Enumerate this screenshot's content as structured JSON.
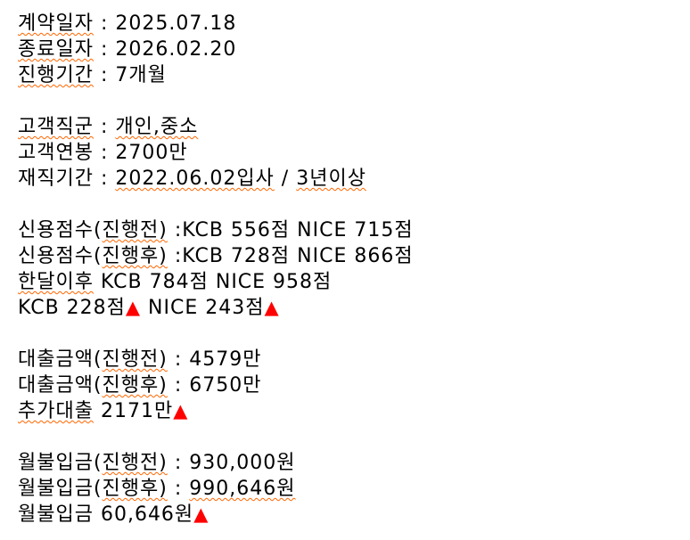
{
  "page": {
    "colors": {
      "text": "#000000",
      "spellcheck_underline": "#ff6600",
      "triangle": "#ff0000",
      "background": "#ffffff"
    },
    "triangle_glyph": "▲"
  },
  "sections": [
    {
      "name": "contract-dates",
      "lines": [
        {
          "segments": [
            {
              "text": "계약일자",
              "kind": "underline"
            },
            {
              "text": " : 2025.07.18",
              "kind": "plain"
            }
          ]
        },
        {
          "segments": [
            {
              "text": "종료일자",
              "kind": "underline"
            },
            {
              "text": " : 2026.02.20",
              "kind": "plain"
            }
          ]
        },
        {
          "segments": [
            {
              "text": "진행기간",
              "kind": "underline"
            },
            {
              "text": " : 7개월",
              "kind": "plain"
            }
          ]
        }
      ]
    },
    {
      "name": "customer-profile",
      "lines": [
        {
          "segments": [
            {
              "text": "고객직군",
              "kind": "underline"
            },
            {
              "text": " : ",
              "kind": "plain"
            },
            {
              "text": "개인,중소",
              "kind": "underline"
            }
          ]
        },
        {
          "segments": [
            {
              "text": "고객연봉 : 2700만",
              "kind": "plain"
            }
          ]
        },
        {
          "segments": [
            {
              "text": "재직기간 : ",
              "kind": "plain"
            },
            {
              "text": "2022.06.02입사",
              "kind": "underline"
            },
            {
              "text": " / ",
              "kind": "plain"
            },
            {
              "text": "3년이상",
              "kind": "underline"
            }
          ]
        }
      ]
    },
    {
      "name": "credit-scores",
      "lines": [
        {
          "segments": [
            {
              "text": "신용점수(",
              "kind": "plain"
            },
            {
              "text": "진행전)",
              "kind": "underline"
            },
            {
              "text": " :KCB 556점 NICE 715점",
              "kind": "plain"
            }
          ]
        },
        {
          "segments": [
            {
              "text": "신용점수(",
              "kind": "plain"
            },
            {
              "text": "진행후)",
              "kind": "underline"
            },
            {
              "text": " :KCB 728점 NICE 866점",
              "kind": "plain"
            }
          ]
        },
        {
          "segments": [
            {
              "text": "한달이후",
              "kind": "underline"
            },
            {
              "text": " KCB 784점 NICE 958점",
              "kind": "plain"
            }
          ]
        },
        {
          "segments": [
            {
              "text": "KCB 228점",
              "kind": "plain"
            },
            {
              "text": "▲",
              "kind": "triangle"
            },
            {
              "text": " NICE 243점",
              "kind": "plain"
            },
            {
              "text": "▲",
              "kind": "triangle"
            }
          ]
        }
      ]
    },
    {
      "name": "loan-amounts",
      "lines": [
        {
          "segments": [
            {
              "text": "대출금액(",
              "kind": "plain"
            },
            {
              "text": "진행전)",
              "kind": "underline"
            },
            {
              "text": " : 4579만",
              "kind": "plain"
            }
          ]
        },
        {
          "segments": [
            {
              "text": "대출금액(",
              "kind": "plain"
            },
            {
              "text": "진행후)",
              "kind": "underline"
            },
            {
              "text": " : 6750만",
              "kind": "plain"
            }
          ]
        },
        {
          "segments": [
            {
              "text": "추가대출",
              "kind": "underline"
            },
            {
              "text": " 2171만",
              "kind": "plain"
            },
            {
              "text": "▲",
              "kind": "triangle"
            }
          ]
        }
      ]
    },
    {
      "name": "monthly-payments",
      "lines": [
        {
          "segments": [
            {
              "text": "월불입금(",
              "kind": "plain"
            },
            {
              "text": "진행전)",
              "kind": "underline"
            },
            {
              "text": " : 930,000원",
              "kind": "plain"
            }
          ]
        },
        {
          "segments": [
            {
              "text": "월불입금(",
              "kind": "plain"
            },
            {
              "text": "진행후)",
              "kind": "underline"
            },
            {
              "text": " : ",
              "kind": "plain"
            },
            {
              "text": "990,646원",
              "kind": "underline"
            }
          ]
        },
        {
          "segments": [
            {
              "text": "월불입금 60,646원",
              "kind": "plain"
            },
            {
              "text": "▲",
              "kind": "triangle"
            }
          ]
        }
      ]
    }
  ]
}
